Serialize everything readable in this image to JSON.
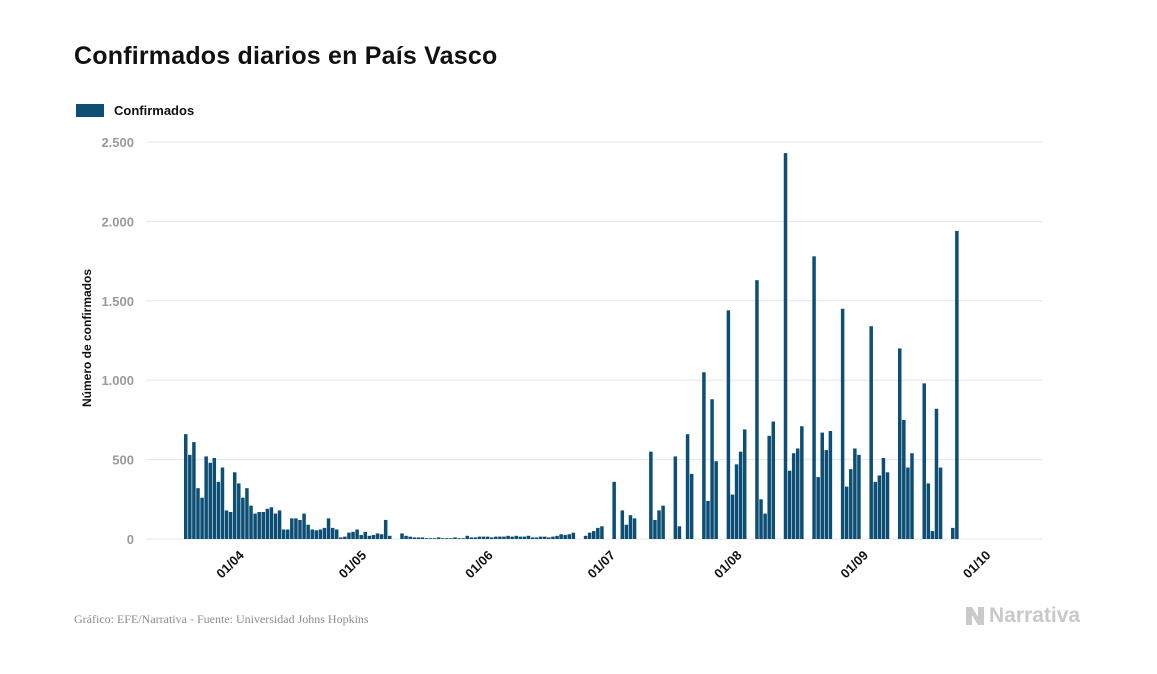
{
  "title": "Confirmados diarios en País Vasco",
  "footer": {
    "source": "Gráfico: EFE/Narrativa - Fuente: Universidad Johns Hopkins",
    "brand": "Narrativa",
    "brand_icon": "narrativa-n-logo-icon"
  },
  "colors": {
    "bar": "#0d4f74",
    "grid": "#e6e6e6",
    "tick_text": "#9a9a9a",
    "brand": "#c9c9c9"
  },
  "chart_data": {
    "type": "bar",
    "title": "Confirmados diarios en País Vasco",
    "xlabel": "",
    "ylabel": "Número de confirmados",
    "ylim": [
      0,
      2500
    ],
    "yticks": [
      0,
      500,
      1000,
      1500,
      2000,
      2500
    ],
    "ytick_labels": [
      "0",
      "500",
      "1.000",
      "1.500",
      "2.000",
      "2.500"
    ],
    "grid": true,
    "legend": "top-left",
    "start_date": "2020-03-20",
    "x_ticks": [
      {
        "label": "01/04",
        "date": "2020-04-01"
      },
      {
        "label": "01/05",
        "date": "2020-05-01"
      },
      {
        "label": "01/06",
        "date": "2020-06-01"
      },
      {
        "label": "01/07",
        "date": "2020-07-01"
      },
      {
        "label": "01/08",
        "date": "2020-08-01"
      },
      {
        "label": "01/09",
        "date": "2020-09-01"
      },
      {
        "label": "01/10",
        "date": "2020-10-01"
      }
    ],
    "series": [
      {
        "name": "Confirmados",
        "values": [
          660,
          530,
          610,
          320,
          260,
          520,
          480,
          510,
          360,
          450,
          180,
          170,
          420,
          350,
          260,
          320,
          210,
          160,
          170,
          170,
          190,
          200,
          160,
          180,
          60,
          60,
          130,
          130,
          120,
          160,
          90,
          60,
          55,
          60,
          70,
          130,
          70,
          60,
          10,
          15,
          40,
          45,
          60,
          25,
          45,
          20,
          25,
          35,
          30,
          120,
          20,
          0,
          0,
          35,
          20,
          15,
          10,
          10,
          10,
          5,
          5,
          5,
          10,
          5,
          5,
          5,
          10,
          5,
          5,
          20,
          10,
          10,
          15,
          15,
          15,
          10,
          15,
          15,
          15,
          20,
          15,
          20,
          15,
          15,
          20,
          10,
          10,
          15,
          15,
          10,
          15,
          20,
          30,
          25,
          30,
          40,
          0,
          0,
          20,
          40,
          50,
          70,
          80,
          0,
          0,
          360,
          0,
          180,
          90,
          150,
          130,
          0,
          0,
          0,
          550,
          120,
          180,
          210,
          0,
          0,
          520,
          80,
          0,
          660,
          410,
          0,
          0,
          1050,
          240,
          880,
          490,
          0,
          0,
          1440,
          280,
          470,
          550,
          690,
          0,
          0,
          1630,
          250,
          160,
          650,
          740,
          0,
          0,
          2430,
          430,
          540,
          570,
          710,
          0,
          0,
          1780,
          390,
          670,
          560,
          680,
          0,
          0,
          1450,
          330,
          440,
          570,
          530,
          0,
          0,
          1340,
          360,
          400,
          510,
          420,
          0,
          0,
          1200,
          750,
          450,
          540,
          0,
          0,
          980,
          350,
          50,
          820,
          450,
          0,
          0,
          70,
          1940
        ]
      }
    ]
  }
}
